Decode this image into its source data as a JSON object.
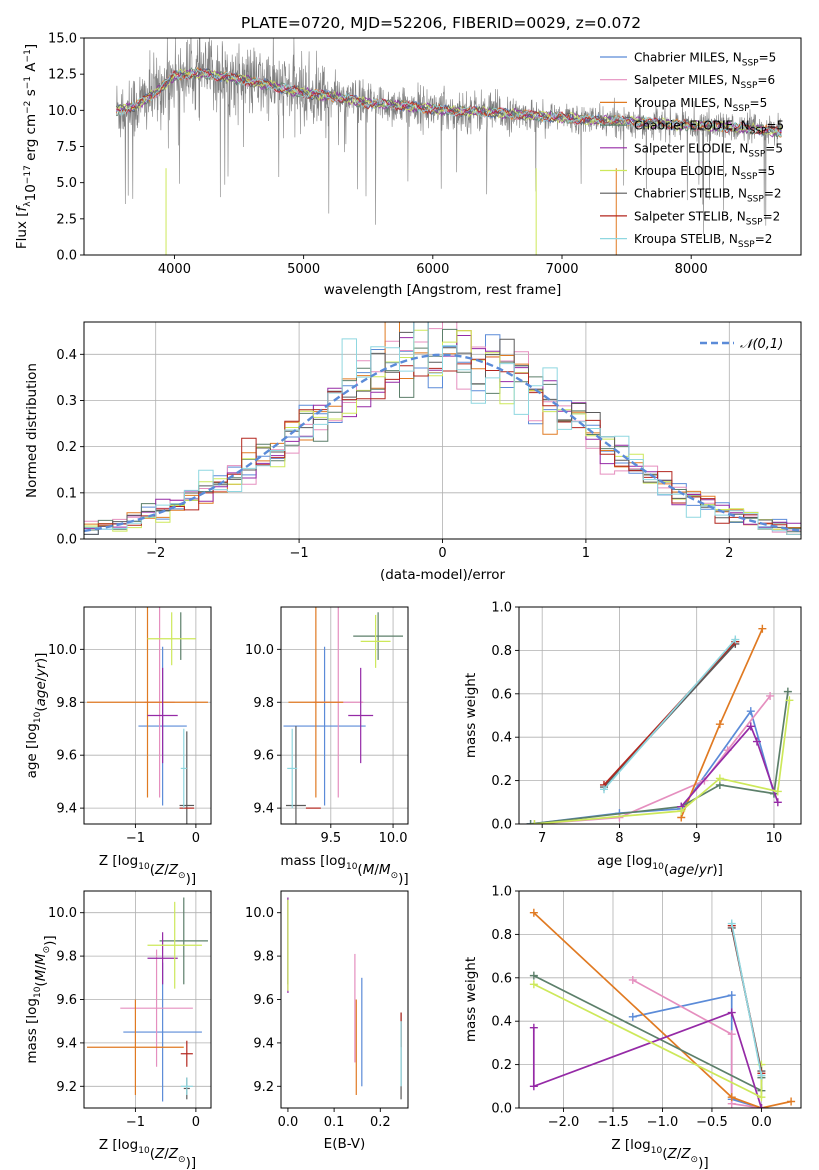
{
  "title": "PLATE=0720, MJD=52206, FIBERID=0029, z=0.072",
  "legend_labels": [
    "Chabrier MILES, N_SSP=5",
    "Salpeter MILES, N_SSP=6",
    "Kroupa MILES, N_SSP=5",
    "Chabrier ELODIE, N_SSP=5",
    "Salpeter ELODIE, N_SSP=5",
    "Kroupa ELODIE, N_SSP=5",
    "Chabrier STELIB, N_SSP=2",
    "Salpeter STELIB, N_SSP=2",
    "Kroupa STELIB, N_SSP=2"
  ],
  "model_colors": [
    "#5b8bd8",
    "#e58fbf",
    "#e07a22",
    "#5c7f6a",
    "#952aa6",
    "#cde85a",
    "#5a5a5a",
    "#b3261e",
    "#8fd7e0"
  ],
  "chart_data": [
    {
      "type": "line",
      "title": "PLATE=0720, MJD=52206, FIBERID=0029, z=0.072",
      "xlabel": "wavelength [Angstrom, rest frame]",
      "ylabel": "Flux [f_λ 10^-17 erg cm^-2 s^-1 A^-1]",
      "xlim": [
        3300,
        8850
      ],
      "ylim": [
        0,
        15
      ],
      "xticks": [
        4000,
        5000,
        6000,
        7000,
        8000
      ],
      "yticks": [
        0.0,
        2.5,
        5.0,
        7.5,
        10.0,
        12.5,
        15.0
      ],
      "data_color": "#808080",
      "spectrum_anchor": {
        "x": [
          3550,
          3700,
          3850,
          4000,
          4200,
          4400,
          4600,
          4800,
          5000,
          5200,
          5500,
          5800,
          6100,
          6400,
          6700,
          7000,
          7300,
          7600,
          7900,
          8200,
          8500,
          8700
        ],
        "y": [
          10.0,
          10.3,
          11.2,
          12.4,
          12.6,
          12.3,
          12.0,
          11.6,
          11.2,
          11.0,
          10.5,
          10.3,
          10.0,
          9.9,
          9.7,
          9.5,
          9.3,
          9.2,
          9.0,
          8.9,
          8.7,
          8.5
        ]
      },
      "legend_position": "right"
    },
    {
      "type": "step",
      "xlabel": "(data-model)/error",
      "ylabel": "Normed distribution",
      "xlim": [
        -2.5,
        2.5
      ],
      "ylim": [
        0,
        0.47
      ],
      "xticks": [
        -2,
        -1,
        0,
        1,
        2
      ],
      "yticks": [
        0.0,
        0.1,
        0.2,
        0.3,
        0.4
      ],
      "reference_curve": {
        "name": "𝒩(0,1)",
        "style": "dashed",
        "color": "#5b8bd8"
      },
      "legend_position": "top-right",
      "bin_width": 0.1,
      "bin_start": -2.5
    },
    {
      "type": "errorbar",
      "xlabel": "Z [log10(Z/Z⊙)]",
      "ylabel": "age  [log10(age/yr)]",
      "xlim": [
        -1.85,
        0.25
      ],
      "ylim": [
        9.34,
        10.16
      ],
      "xticks": [
        -1,
        0
      ],
      "yticks": [
        9.4,
        9.6,
        9.8,
        10.0
      ],
      "points": [
        {
          "x": -0.55,
          "xerr": 0.4,
          "y": 9.71,
          "yerr": 0.3
        },
        {
          "x": -0.6,
          "xerr": 0.25,
          "y": 9.8,
          "yerr": 0.36
        },
        {
          "x": -0.8,
          "xerr": 1.0,
          "y": 9.8,
          "yerr": 0.36
        },
        {
          "x": -0.25,
          "xerr": 0.0,
          "y": 10.05,
          "yerr": 0.09
        },
        {
          "x": -0.55,
          "xerr": 0.25,
          "y": 9.75,
          "yerr": 0.18
        },
        {
          "x": -0.4,
          "xerr": 0.4,
          "y": 10.04,
          "yerr": 0.1
        },
        {
          "x": -0.15,
          "xerr": 0.12,
          "y": 9.41,
          "yerr": 0.28
        },
        {
          "x": -0.15,
          "xerr": 0.12,
          "y": 9.4,
          "yerr": 0.0
        },
        {
          "x": -0.2,
          "xerr": 0.05,
          "y": 9.55,
          "yerr": 0.15
        }
      ]
    },
    {
      "type": "errorbar",
      "xlabel": "mass [log10(M/M⊙)]",
      "ylabel": "",
      "xlim": [
        9.1,
        10.12
      ],
      "ylim": [
        9.34,
        10.16
      ],
      "xticks": [
        9.5,
        10.0
      ],
      "yticks": [
        9.4,
        9.6,
        9.8,
        10.0
      ],
      "points": [
        {
          "x": 9.45,
          "xerr": 0.33,
          "y": 9.71,
          "yerr": 0.3
        },
        {
          "x": 9.56,
          "xerr": 0.2,
          "y": 9.8,
          "yerr": 0.36
        },
        {
          "x": 9.38,
          "xerr": 0.22,
          "y": 9.8,
          "yerr": 0.36
        },
        {
          "x": 9.88,
          "xerr": 0.2,
          "y": 10.05,
          "yerr": 0.09
        },
        {
          "x": 9.74,
          "xerr": 0.1,
          "y": 9.75,
          "yerr": 0.18
        },
        {
          "x": 9.86,
          "xerr": 0.12,
          "y": 10.03,
          "yerr": 0.1
        },
        {
          "x": 9.22,
          "xerr": 0.08,
          "y": 9.41,
          "yerr": 0.3
        },
        {
          "x": 9.36,
          "xerr": 0.06,
          "y": 9.4,
          "yerr": 0.0
        },
        {
          "x": 9.19,
          "xerr": 0.04,
          "y": 9.55,
          "yerr": 0.15
        }
      ]
    },
    {
      "type": "line",
      "xlabel": "age  [log10(age/yr)]",
      "ylabel": "mass weight",
      "xlim": [
        6.7,
        10.35
      ],
      "ylim": [
        0,
        1
      ],
      "xticks": [
        7,
        8,
        9,
        10
      ],
      "yticks": [
        0.0,
        0.2,
        0.4,
        0.6,
        0.8,
        1.0
      ],
      "series": [
        {
          "x": [
            6.85,
            8.0,
            8.8,
            9.7,
            10.0
          ],
          "y": [
            0.0,
            0.05,
            0.07,
            0.52,
            0.14
          ]
        },
        {
          "x": [
            6.9,
            8.0,
            9.1,
            9.4,
            9.95
          ],
          "y": [
            0.0,
            0.03,
            0.2,
            0.34,
            0.59
          ]
        },
        {
          "x": [
            8.8,
            9.3,
            9.85
          ],
          "y": [
            0.03,
            0.46,
            0.9
          ]
        },
        {
          "x": [
            6.85,
            8.8,
            9.3,
            10.0,
            10.18
          ],
          "y": [
            0.0,
            0.08,
            0.18,
            0.14,
            0.61
          ]
        },
        {
          "x": [
            8.8,
            9.7,
            9.78,
            10.05
          ],
          "y": [
            0.08,
            0.45,
            0.38,
            0.1
          ]
        },
        {
          "x": [
            6.9,
            8.8,
            9.3,
            10.05,
            10.2
          ],
          "y": [
            0.0,
            0.06,
            0.21,
            0.15,
            0.57
          ]
        },
        {
          "x": [
            7.8,
            9.5
          ],
          "y": [
            0.17,
            0.83
          ]
        },
        {
          "x": [
            7.8,
            9.5
          ],
          "y": [
            0.18,
            0.84
          ]
        },
        {
          "x": [
            7.8,
            9.5
          ],
          "y": [
            0.16,
            0.85
          ]
        }
      ]
    },
    {
      "type": "errorbar",
      "xlabel": "Z [log10(Z/Z⊙)]",
      "ylabel": "mass [log10(M/M⊙)]",
      "xlim": [
        -1.85,
        0.25
      ],
      "ylim": [
        9.1,
        10.1
      ],
      "xticks": [
        -1,
        0
      ],
      "yticks": [
        9.2,
        9.4,
        9.6,
        9.8,
        10.0
      ],
      "points": [
        {
          "x": -0.55,
          "xerr": 0.65,
          "y": 9.45,
          "yerr": 0.32
        },
        {
          "x": -0.65,
          "xerr": 0.6,
          "y": 9.56,
          "yerr": 0.27
        },
        {
          "x": -1.0,
          "xerr": 0.8,
          "y": 9.38,
          "yerr": 0.22
        },
        {
          "x": -0.2,
          "xerr": 0.4,
          "y": 9.87,
          "yerr": 0.2
        },
        {
          "x": -0.55,
          "xerr": 0.25,
          "y": 9.79,
          "yerr": 0.12
        },
        {
          "x": -0.35,
          "xerr": 0.45,
          "y": 9.85,
          "yerr": 0.2
        },
        {
          "x": -0.15,
          "xerr": 0.05,
          "y": 9.19,
          "yerr": 0.05
        },
        {
          "x": -0.15,
          "xerr": 0.1,
          "y": 9.35,
          "yerr": 0.06
        },
        {
          "x": -0.15,
          "xerr": 0.1,
          "y": 9.2,
          "yerr": 0.04
        }
      ]
    },
    {
      "type": "errorbar",
      "xlabel": "E(B-V)",
      "ylabel": "",
      "xlim": [
        -0.015,
        0.26
      ],
      "ylim": [
        9.1,
        10.1
      ],
      "xticks": [
        0.0,
        0.1,
        0.2
      ],
      "yticks": [
        9.2,
        9.4,
        9.6,
        9.8,
        10.0
      ],
      "points": [
        {
          "x": 0.16,
          "y": 9.45,
          "yerr": 0.25
        },
        {
          "x": 0.145,
          "y": 9.56,
          "yerr": 0.25
        },
        {
          "x": 0.148,
          "y": 9.38,
          "yerr": 0.22
        },
        {
          "x": 0.0,
          "y": 9.87,
          "yerr": 0.2
        },
        {
          "x": 0.0,
          "y": 9.85,
          "yerr": 0.22
        },
        {
          "x": 0.0,
          "y": 9.85,
          "yerr": 0.21
        },
        {
          "x": 0.245,
          "y": 9.34,
          "yerr": 0.2
        },
        {
          "x": 0.245,
          "y": 9.46,
          "yerr": 0.08
        },
        {
          "x": 0.245,
          "y": 9.35,
          "yerr": 0.15
        }
      ]
    },
    {
      "type": "line",
      "xlabel": "Z [log10(Z/Z⊙)]",
      "ylabel": "mass weight",
      "xlim": [
        -2.45,
        0.4
      ],
      "ylim": [
        0,
        1
      ],
      "xticks": [
        -2.0,
        -1.5,
        -1.0,
        -0.5,
        0.0
      ],
      "yticks": [
        0.0,
        0.2,
        0.4,
        0.6,
        0.8,
        1.0
      ],
      "series": [
        {
          "x": [
            -1.3,
            -0.3,
            -0.3,
            0.0
          ],
          "y": [
            0.42,
            0.52,
            0.04,
            0.0
          ]
        },
        {
          "x": [
            -1.3,
            -0.3,
            -0.3,
            0.0
          ],
          "y": [
            0.59,
            0.34,
            0.02,
            0.0
          ]
        },
        {
          "x": [
            -2.3,
            -0.3,
            0.0,
            0.3
          ],
          "y": [
            0.9,
            0.05,
            0.0,
            0.03
          ]
        },
        {
          "x": [
            -2.3,
            0.0,
            0.0
          ],
          "y": [
            0.61,
            0.08,
            0.14
          ]
        },
        {
          "x": [
            -2.3,
            -2.3,
            -0.3,
            0.0
          ],
          "y": [
            0.37,
            0.1,
            0.44,
            0.0
          ]
        },
        {
          "x": [
            -2.3,
            0.0,
            0.0
          ],
          "y": [
            0.57,
            0.05,
            0.2
          ]
        },
        {
          "x": [
            -0.3,
            0.0
          ],
          "y": [
            0.83,
            0.17
          ]
        },
        {
          "x": [
            -0.3,
            0.0
          ],
          "y": [
            0.84,
            0.16
          ]
        },
        {
          "x": [
            -0.3,
            0.0
          ],
          "y": [
            0.85,
            0.15
          ]
        }
      ]
    }
  ]
}
